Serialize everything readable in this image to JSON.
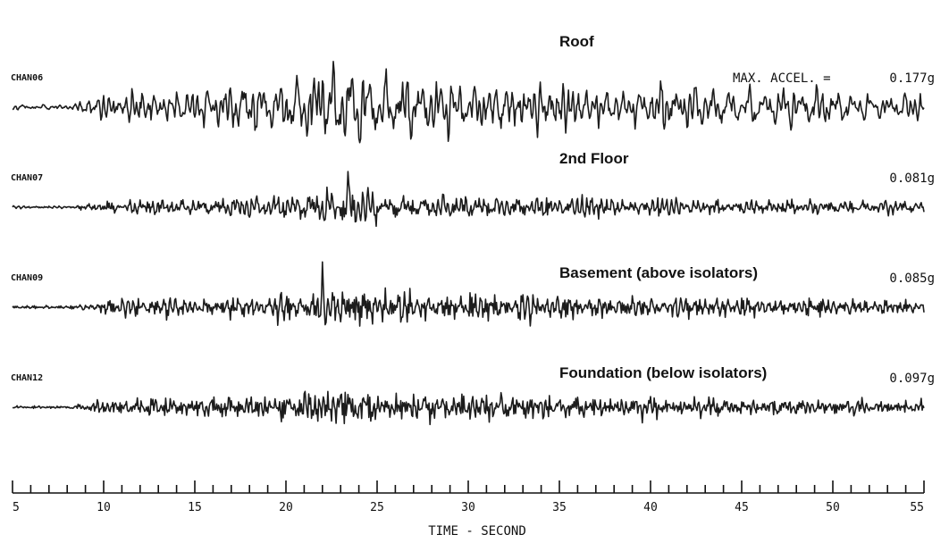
{
  "chart_data": {
    "type": "line",
    "xlabel": "TIME - SECOND",
    "xlim": [
      5,
      55
    ],
    "x_ticks": [
      5,
      10,
      15,
      20,
      25,
      30,
      35,
      40,
      45,
      50,
      55
    ],
    "minor_tick_step": 1,
    "max_accel_prefix": "MAX. ACCEL. =",
    "series": [
      {
        "channel": "CHAN06",
        "name": "Roof",
        "max_accel": "0.177g",
        "peak_g": 0.177,
        "peak_time": 22.0
      },
      {
        "channel": "CHAN07",
        "name": "2nd Floor",
        "max_accel": "0.081g",
        "peak_g": 0.081,
        "peak_time": 23.4
      },
      {
        "channel": "CHAN09",
        "name": "Basement (above isolators)",
        "max_accel": "0.085g",
        "peak_g": 0.085,
        "peak_time": 22.0
      },
      {
        "channel": "CHAN12",
        "name": "Foundation (below isolators)",
        "max_accel": "0.097g",
        "peak_g": 0.097,
        "peak_time": 23.0
      }
    ]
  }
}
